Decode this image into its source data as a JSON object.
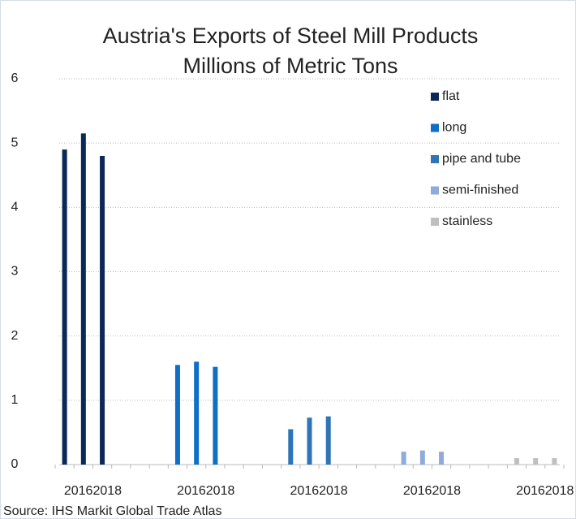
{
  "chart_data": {
    "type": "bar",
    "title": "Austria's Exports of Steel Mill Products",
    "subtitle": "Millions of Metric Tons",
    "source": "Source: IHS Markit Global Trade Atlas",
    "categories": [
      null,
      "2016",
      "2018",
      null,
      null,
      null,
      null,
      "2016",
      "2018",
      null,
      null,
      null,
      null,
      "2016",
      "2018",
      null,
      null,
      null,
      null,
      "2016",
      "2018",
      null,
      null,
      null,
      null,
      "2016",
      "2018"
    ],
    "series": [
      {
        "name": "flat",
        "color": "#0c2857",
        "values": [
          4.9,
          5.15,
          4.8,
          null,
          null,
          null,
          null,
          null,
          null,
          null,
          null,
          null,
          null,
          null,
          null,
          null,
          null,
          null,
          null,
          null,
          null,
          null,
          null,
          null,
          null,
          null,
          null
        ]
      },
      {
        "name": "long",
        "color": "#0f6fc6",
        "values": [
          null,
          null,
          null,
          null,
          null,
          null,
          1.55,
          1.6,
          1.52,
          null,
          null,
          null,
          null,
          null,
          null,
          null,
          null,
          null,
          null,
          null,
          null,
          null,
          null,
          null,
          null,
          null,
          null
        ]
      },
      {
        "name": "pipe and tube",
        "color": "#2e75b6",
        "values": [
          null,
          null,
          null,
          null,
          null,
          null,
          null,
          null,
          null,
          null,
          null,
          null,
          0.55,
          0.73,
          0.75,
          null,
          null,
          null,
          null,
          null,
          null,
          null,
          null,
          null,
          null,
          null,
          null
        ]
      },
      {
        "name": "semi-finished",
        "color": "#8faadc",
        "values": [
          null,
          null,
          null,
          null,
          null,
          null,
          null,
          null,
          null,
          null,
          null,
          null,
          null,
          null,
          null,
          null,
          null,
          null,
          0.2,
          0.22,
          0.2,
          null,
          null,
          null,
          null,
          null,
          null
        ]
      },
      {
        "name": "stainless",
        "color": "#bfbfbf",
        "values": [
          null,
          null,
          null,
          null,
          null,
          null,
          null,
          null,
          null,
          null,
          null,
          null,
          null,
          null,
          null,
          null,
          null,
          null,
          null,
          null,
          null,
          null,
          null,
          null,
          0.1,
          0.1,
          0.1
        ]
      }
    ],
    "ylim": [
      0,
      6
    ],
    "yticks": [
      0,
      1,
      2,
      3,
      4,
      5,
      6
    ],
    "grid": true,
    "legend": "top-right"
  }
}
